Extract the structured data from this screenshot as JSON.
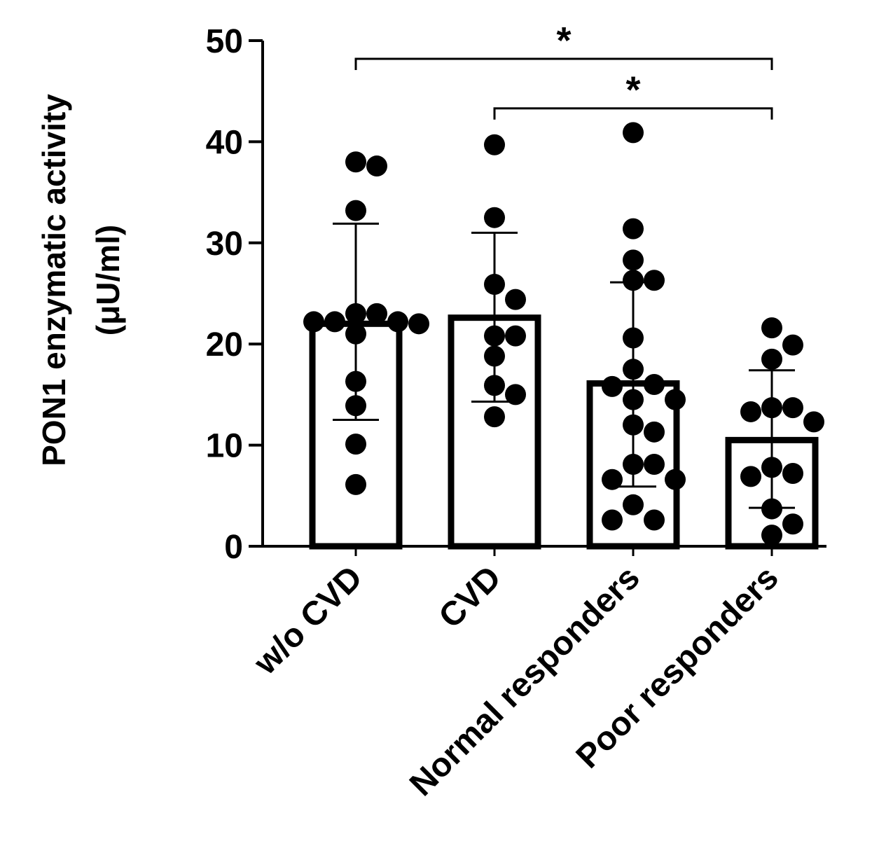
{
  "chart_data": {
    "type": "bar",
    "ylabel_line1": "PON1 enzymatic activity",
    "ylabel_line2": "(μU/ml)",
    "ylim": [
      0,
      50
    ],
    "yticks": [
      0,
      10,
      20,
      30,
      40,
      50
    ],
    "categories": [
      "w/o CVD",
      "CVD",
      "Normal responders",
      "Poor responders"
    ],
    "means": [
      22.0,
      22.6,
      16.1,
      10.5
    ],
    "error_low": [
      12.5,
      14.3,
      5.9,
      3.8
    ],
    "error_high": [
      31.9,
      31.0,
      26.1,
      17.4
    ],
    "points": [
      [
        38.0,
        37.6,
        33.2,
        23.0,
        23.0,
        22.2,
        22.2,
        22.2,
        22.0,
        21.0,
        16.3,
        13.9,
        10.1,
        6.1
      ],
      [
        39.7,
        32.5,
        25.9,
        24.4,
        20.8,
        20.8,
        18.8,
        15.9,
        15.0,
        12.8
      ],
      [
        40.9,
        31.4,
        28.3,
        26.3,
        26.3,
        20.6,
        17.5,
        16.0,
        15.8,
        14.5,
        14.5,
        12.0,
        11.3,
        8.1,
        8.1,
        6.6,
        6.6,
        4.1,
        2.6,
        2.6
      ],
      [
        21.6,
        19.9,
        18.5,
        13.7,
        13.7,
        13.3,
        12.3,
        7.8,
        7.2,
        6.9,
        3.7,
        2.2,
        1.1
      ]
    ],
    "significance": [
      {
        "from": 0,
        "to": 3,
        "y": 48.2,
        "label": "*"
      },
      {
        "from": 1,
        "to": 3,
        "y": 43.3,
        "label": "*"
      }
    ]
  }
}
